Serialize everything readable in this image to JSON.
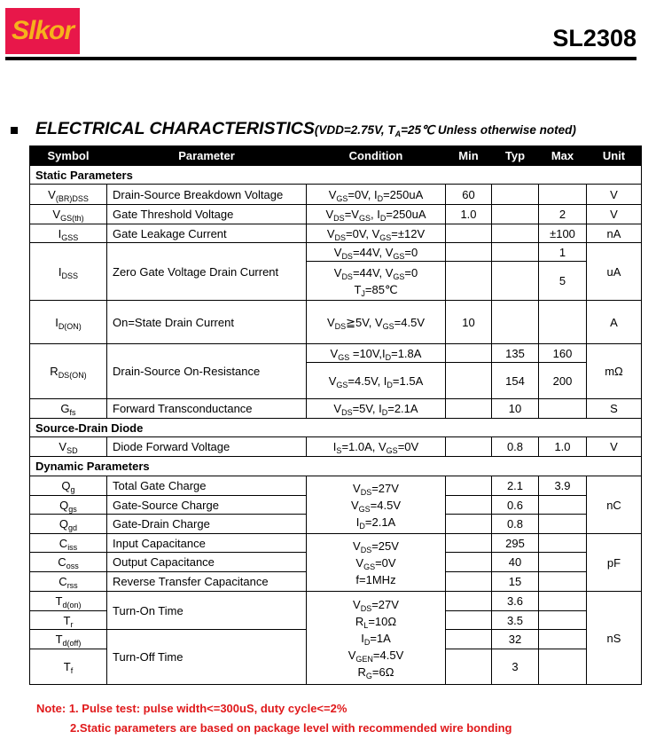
{
  "header": {
    "logo": "Slkor",
    "part_number": "SL2308",
    "logo_color": "#e8174a",
    "logo_text_color": "#f6b21c"
  },
  "title": {
    "main": "ELECTRICAL CHARACTERISTICS",
    "conditions": "(VDD=2.75V, T_{A}=25℃  Unless otherwise noted)"
  },
  "table": {
    "headers": [
      "Symbol",
      "Parameter",
      "Condition",
      "Min",
      "Typ",
      "Max",
      "Unit"
    ],
    "sections": {
      "static": "Static Parameters",
      "sd": "Source-Drain Diode",
      "dynamic": "Dynamic Parameters"
    },
    "bvdss": {
      "sym": "V_{(BR)DSS}",
      "param": "Drain-Source Breakdown Voltage",
      "cond": "V_{GS}=0V, I_{D}=250uA",
      "min": "60",
      "unit": "V"
    },
    "vth": {
      "sym": "V_{GS(th)}",
      "param": "Gate Threshold Voltage",
      "cond": "V_{DS}=V_{GS}, I_{D}=250uA",
      "min": "1.0",
      "max": "2",
      "unit": "V"
    },
    "igss": {
      "sym": "I_{GSS}",
      "param": "Gate Leakage Current",
      "cond": "V_{DS}=0V, V_{GS}=±12V",
      "max": "±100",
      "unit": "nA"
    },
    "idss": {
      "sym": "I_{DSS}",
      "param": "Zero Gate Voltage Drain Current",
      "cond1": "V_{DS}=44V, V_{GS}=0",
      "max1": "1",
      "cond2": "V_{DS}=44V, V_{GS}=0",
      "cond2b": "T_{J}=85℃",
      "max2": "5",
      "unit": "uA"
    },
    "idon": {
      "sym": "I_{D(ON)}",
      "param": "On=State Drain Current",
      "cond": "V_{DS}≧5V, V_{GS}=4.5V",
      "min": "10",
      "unit": "A"
    },
    "rds": {
      "sym": "R_{DS(ON)}",
      "param": "Drain-Source On-Resistance",
      "cond1": "V_{GS} =10V,I_{D}=1.8A",
      "typ1": "135",
      "max1": "160",
      "cond2": "V_{GS}=4.5V, I_{D}=1.5A",
      "typ2": "154",
      "max2": "200",
      "unit": "mΩ"
    },
    "gfs": {
      "sym": "G_{fs}",
      "param": "Forward Transconductance",
      "cond": "V_{DS}=5V, I_{D}=2.1A",
      "typ": "10",
      "unit": "S"
    },
    "vsd": {
      "sym": "V_{SD}",
      "param": "Diode Forward Voltage",
      "cond": "I_{S}=1.0A, V_{GS}=0V",
      "typ": "0.8",
      "max": "1.0",
      "unit": "V"
    },
    "charge": {
      "cond": [
        "V_{DS}=27V",
        "V_{GS}=4.5V",
        "I_{D}=2.1A"
      ],
      "unit": "nC",
      "qg": {
        "sym": "Q_{g}",
        "param": "Total Gate Charge",
        "typ": "2.1",
        "max": "3.9"
      },
      "qgs": {
        "sym": "Q_{gs}",
        "param": "Gate-Source Charge",
        "typ": "0.6"
      },
      "qgd": {
        "sym": "Q_{gd}",
        "param": "Gate-Drain Charge",
        "typ": "0.8"
      }
    },
    "cap": {
      "cond": [
        "V_{DS}=25V",
        "V_{GS}=0V",
        "f=1MHz"
      ],
      "unit": "pF",
      "ciss": {
        "sym": "C_{iss}",
        "param": "Input Capacitance",
        "typ": "295"
      },
      "coss": {
        "sym": "C_{oss}",
        "param": "Output Capacitance",
        "typ": "40"
      },
      "crss": {
        "sym": "C_{rss}",
        "param": "Reverse Transfer Capacitance",
        "typ": "15"
      }
    },
    "sw": {
      "cond": [
        "V_{DS}=27V",
        "R_{L}=10Ω",
        "I_{D}=1A",
        "V_{GEN}=4.5V",
        "R_{G}=6Ω"
      ],
      "unit": "nS",
      "on_param": "Turn-On Time",
      "off_param": "Turn-Off Time",
      "tdon": {
        "sym": "T_{d(on)}",
        "typ": "3.6"
      },
      "tr": {
        "sym": "T_{r}",
        "typ": "3.5"
      },
      "tdoff": {
        "sym": "T_{d(off)}",
        "typ": "32"
      },
      "tf": {
        "sym": "T_{f}",
        "typ": "3"
      }
    }
  },
  "notes": {
    "line1": "Note: 1. Pulse test: pulse width<=300uS, duty cycle<=2%",
    "line2": "2.Static parameters are based on package level with recommended wire bonding",
    "color": "#e0191b"
  }
}
